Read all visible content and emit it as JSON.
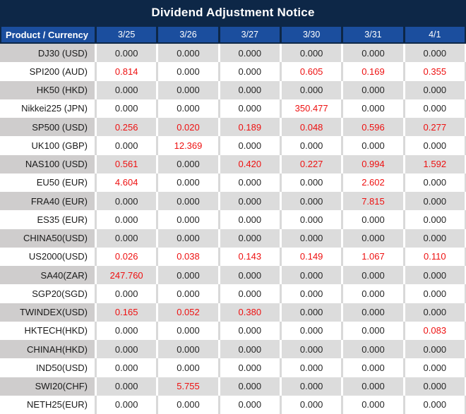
{
  "title": "Dividend Adjustment Notice",
  "colors": {
    "title_bg": "#0d2747",
    "header_cell_bg": "#1b4e9e",
    "gray_row_label_bg": "#cfcdcd",
    "gray_row_value_bg": "#dcdcdc",
    "white_row_bg": "#ffffff",
    "value_black": "#262626",
    "value_red": "#ee1111"
  },
  "table": {
    "product_header": "Product / Currency",
    "date_columns": [
      "3/25",
      "3/26",
      "3/27",
      "3/30",
      "3/31",
      "4/1"
    ],
    "rows": [
      {
        "product": "DJ30 (USD)",
        "values": [
          "0.000",
          "0.000",
          "0.000",
          "0.000",
          "0.000",
          "0.000"
        ],
        "red": [
          false,
          false,
          false,
          false,
          false,
          false
        ]
      },
      {
        "product": "SPI200 (AUD)",
        "values": [
          "0.814",
          "0.000",
          "0.000",
          "0.605",
          "0.169",
          "0.355"
        ],
        "red": [
          true,
          false,
          false,
          true,
          true,
          true
        ]
      },
      {
        "product": "HK50 (HKD)",
        "values": [
          "0.000",
          "0.000",
          "0.000",
          "0.000",
          "0.000",
          "0.000"
        ],
        "red": [
          false,
          false,
          false,
          false,
          false,
          false
        ]
      },
      {
        "product": "Nikkei225 (JPN)",
        "values": [
          "0.000",
          "0.000",
          "0.000",
          "350.477",
          "0.000",
          "0.000"
        ],
        "red": [
          false,
          false,
          false,
          true,
          false,
          false
        ]
      },
      {
        "product": "SP500 (USD)",
        "values": [
          "0.256",
          "0.020",
          "0.189",
          "0.048",
          "0.596",
          "0.277"
        ],
        "red": [
          true,
          true,
          true,
          true,
          true,
          true
        ]
      },
      {
        "product": "UK100 (GBP)",
        "values": [
          "0.000",
          "12.369",
          "0.000",
          "0.000",
          "0.000",
          "0.000"
        ],
        "red": [
          false,
          true,
          false,
          false,
          false,
          false
        ]
      },
      {
        "product": "NAS100 (USD)",
        "values": [
          "0.561",
          "0.000",
          "0.420",
          "0.227",
          "0.994",
          "1.592"
        ],
        "red": [
          true,
          false,
          true,
          true,
          true,
          true
        ]
      },
      {
        "product": "EU50 (EUR)",
        "values": [
          "4.604",
          "0.000",
          "0.000",
          "0.000",
          "2.602",
          "0.000"
        ],
        "red": [
          true,
          false,
          false,
          false,
          true,
          false
        ]
      },
      {
        "product": "FRA40 (EUR)",
        "values": [
          "0.000",
          "0.000",
          "0.000",
          "0.000",
          "7.815",
          "0.000"
        ],
        "red": [
          false,
          false,
          false,
          false,
          true,
          false
        ]
      },
      {
        "product": "ES35 (EUR)",
        "values": [
          "0.000",
          "0.000",
          "0.000",
          "0.000",
          "0.000",
          "0.000"
        ],
        "red": [
          false,
          false,
          false,
          false,
          false,
          false
        ]
      },
      {
        "product": "CHINA50(USD)",
        "values": [
          "0.000",
          "0.000",
          "0.000",
          "0.000",
          "0.000",
          "0.000"
        ],
        "red": [
          false,
          false,
          false,
          false,
          false,
          false
        ]
      },
      {
        "product": "US2000(USD)",
        "values": [
          "0.026",
          "0.038",
          "0.143",
          "0.149",
          "1.067",
          "0.110"
        ],
        "red": [
          true,
          true,
          true,
          true,
          true,
          true
        ]
      },
      {
        "product": "SA40(ZAR)",
        "values": [
          "247.760",
          "0.000",
          "0.000",
          "0.000",
          "0.000",
          "0.000"
        ],
        "red": [
          true,
          false,
          false,
          false,
          false,
          false
        ]
      },
      {
        "product": "SGP20(SGD)",
        "values": [
          "0.000",
          "0.000",
          "0.000",
          "0.000",
          "0.000",
          "0.000"
        ],
        "red": [
          false,
          false,
          false,
          false,
          false,
          false
        ]
      },
      {
        "product": "TWINDEX(USD)",
        "values": [
          "0.165",
          "0.052",
          "0.380",
          "0.000",
          "0.000",
          "0.000"
        ],
        "red": [
          true,
          true,
          true,
          false,
          false,
          false
        ]
      },
      {
        "product": "HKTECH(HKD)",
        "values": [
          "0.000",
          "0.000",
          "0.000",
          "0.000",
          "0.000",
          "0.083"
        ],
        "red": [
          false,
          false,
          false,
          false,
          false,
          true
        ]
      },
      {
        "product": "CHINAH(HKD)",
        "values": [
          "0.000",
          "0.000",
          "0.000",
          "0.000",
          "0.000",
          "0.000"
        ],
        "red": [
          false,
          false,
          false,
          false,
          false,
          false
        ]
      },
      {
        "product": "IND50(USD)",
        "values": [
          "0.000",
          "0.000",
          "0.000",
          "0.000",
          "0.000",
          "0.000"
        ],
        "red": [
          false,
          false,
          false,
          false,
          false,
          false
        ]
      },
      {
        "product": "SWI20(CHF)",
        "values": [
          "0.000",
          "5.755",
          "0.000",
          "0.000",
          "0.000",
          "0.000"
        ],
        "red": [
          false,
          true,
          false,
          false,
          false,
          false
        ]
      },
      {
        "product": "NETH25(EUR)",
        "values": [
          "0.000",
          "0.000",
          "0.000",
          "0.000",
          "0.000",
          "0.000"
        ],
        "red": [
          false,
          false,
          false,
          false,
          false,
          false
        ]
      }
    ]
  }
}
